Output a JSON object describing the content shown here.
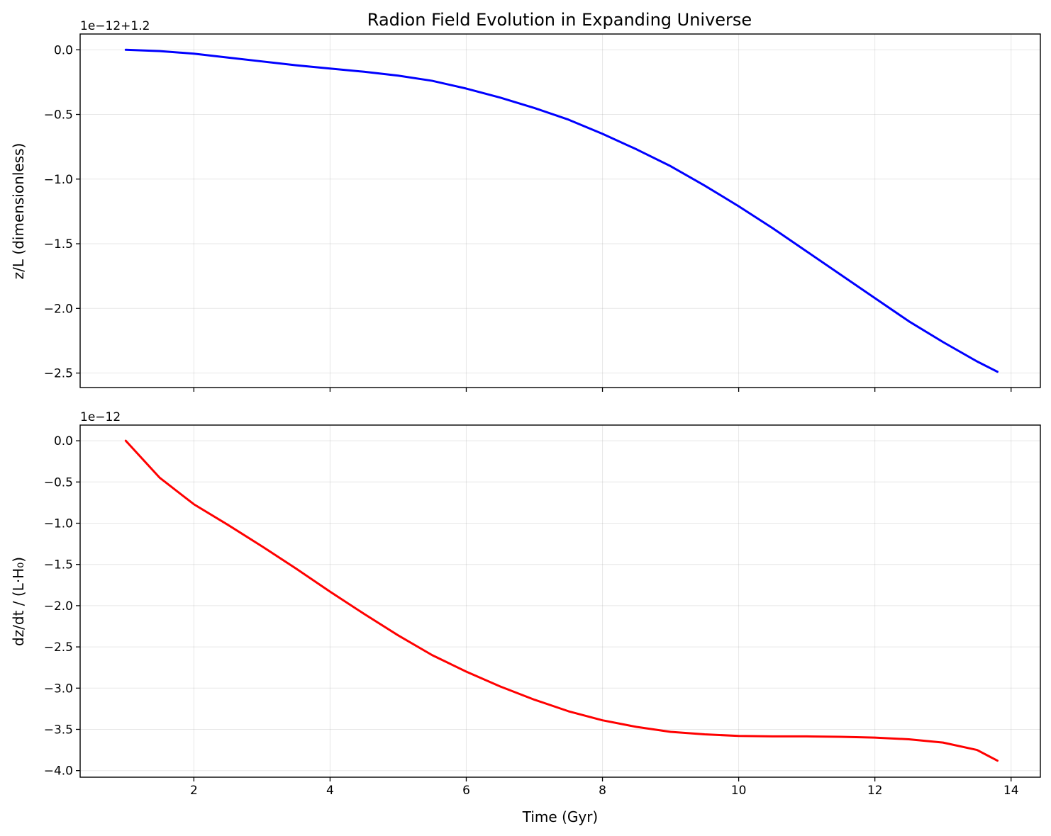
{
  "title": "Radion Field Evolution in Expanding Universe",
  "colors": {
    "top_series": "#0000ff",
    "bottom_series": "#ff0000",
    "grid": "#b0b0b0"
  },
  "chart_data": [
    {
      "type": "line",
      "ylabel": "z/L (dimensionless)",
      "xlabel": "",
      "offset_text": "1e−12+1.2",
      "grid": true,
      "xlim": [
        0.33,
        14.43
      ],
      "ylim": [
        -2.612,
        0.122
      ],
      "xticks": [
        2,
        4,
        6,
        8,
        10,
        12,
        14
      ],
      "xtick_labels": [],
      "yticks": [
        0.0,
        -0.5,
        -1.0,
        -1.5,
        -2.0,
        -2.5
      ],
      "ytick_labels": [
        "0.0",
        "−0.5",
        "−1.0",
        "−1.5",
        "−2.0",
        "−2.5"
      ],
      "series": [
        {
          "color": "#0000ff",
          "x": [
            1.0,
            1.5,
            2.0,
            2.5,
            3.0,
            3.5,
            4.0,
            4.5,
            5.0,
            5.5,
            6.0,
            6.5,
            7.0,
            7.5,
            8.0,
            8.5,
            9.0,
            9.5,
            10.0,
            10.5,
            11.0,
            11.5,
            12.0,
            12.5,
            13.0,
            13.5,
            13.8
          ],
          "y": [
            0.0,
            -0.01,
            -0.03,
            -0.06,
            -0.09,
            -0.12,
            -0.145,
            -0.17,
            -0.2,
            -0.24,
            -0.3,
            -0.37,
            -0.45,
            -0.54,
            -0.65,
            -0.77,
            -0.9,
            -1.05,
            -1.21,
            -1.38,
            -1.56,
            -1.74,
            -1.92,
            -2.1,
            -2.26,
            -2.41,
            -2.49
          ]
        }
      ]
    },
    {
      "type": "line",
      "ylabel": "dz/dt / (L·H₀)",
      "xlabel": "Time (Gyr)",
      "offset_text": "1e−12",
      "grid": true,
      "xlim": [
        0.33,
        14.43
      ],
      "ylim": [
        -4.08,
        0.19
      ],
      "xticks": [
        2,
        4,
        6,
        8,
        10,
        12,
        14
      ],
      "xtick_labels": [
        "2",
        "4",
        "6",
        "8",
        "10",
        "12",
        "14"
      ],
      "yticks": [
        0.0,
        -0.5,
        -1.0,
        -1.5,
        -2.0,
        -2.5,
        -3.0,
        -3.5,
        -4.0
      ],
      "ytick_labels": [
        "0.0",
        "−0.5",
        "−1.0",
        "−1.5",
        "−2.0",
        "−2.5",
        "−3.0",
        "−3.5",
        "−4.0"
      ],
      "series": [
        {
          "color": "#ff0000",
          "x": [
            1.0,
            1.5,
            2.0,
            2.5,
            3.0,
            3.5,
            4.0,
            4.5,
            5.0,
            5.5,
            6.0,
            6.5,
            7.0,
            7.5,
            8.0,
            8.5,
            9.0,
            9.5,
            10.0,
            10.5,
            11.0,
            11.5,
            12.0,
            12.5,
            13.0,
            13.5,
            13.8
          ],
          "y": [
            0.0,
            -0.45,
            -0.77,
            -1.02,
            -1.28,
            -1.55,
            -1.83,
            -2.1,
            -2.36,
            -2.6,
            -2.8,
            -2.98,
            -3.14,
            -3.28,
            -3.39,
            -3.47,
            -3.53,
            -3.56,
            -3.58,
            -3.585,
            -3.585,
            -3.59,
            -3.6,
            -3.62,
            -3.66,
            -3.75,
            -3.88
          ]
        }
      ]
    }
  ]
}
